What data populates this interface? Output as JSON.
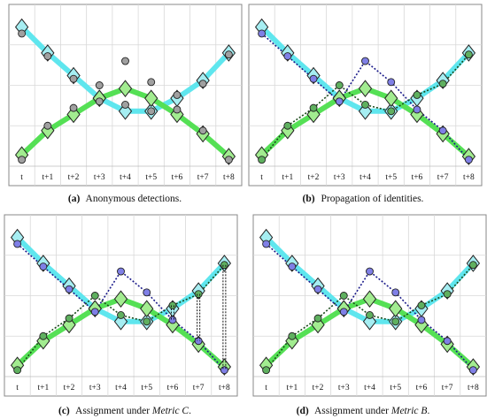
{
  "time_steps": [
    "t",
    "t+1",
    "t+2",
    "t+3",
    "t+4",
    "t+5",
    "t+6",
    "t+7",
    "t+8"
  ],
  "panels": [
    {
      "id": "a",
      "label": "(a)",
      "caption": "Anonymous detections.",
      "caption_em": "",
      "caption_tail": ""
    },
    {
      "id": "b",
      "label": "(b)",
      "caption": "Propagation of identities.",
      "caption_em": "",
      "caption_tail": ""
    },
    {
      "id": "c",
      "label": "(c)",
      "caption": "Assignment under ",
      "caption_em": "Metric C",
      "caption_tail": "."
    },
    {
      "id": "d",
      "label": "(d)",
      "caption": "Assignment under ",
      "caption_em": "Metric B",
      "caption_tail": "."
    }
  ],
  "colors": {
    "cyan_track": "#5fe6ee",
    "green_track": "#55e055",
    "cyan_diamond": "#a6eef2",
    "green_diamond": "#a2ec90",
    "gray_detection": "#a0a0a0",
    "blue_identity": "#7f7fe6",
    "green_identity": "#5fb05f",
    "grid": "#d8d8d8",
    "frame": "#888888"
  }
}
